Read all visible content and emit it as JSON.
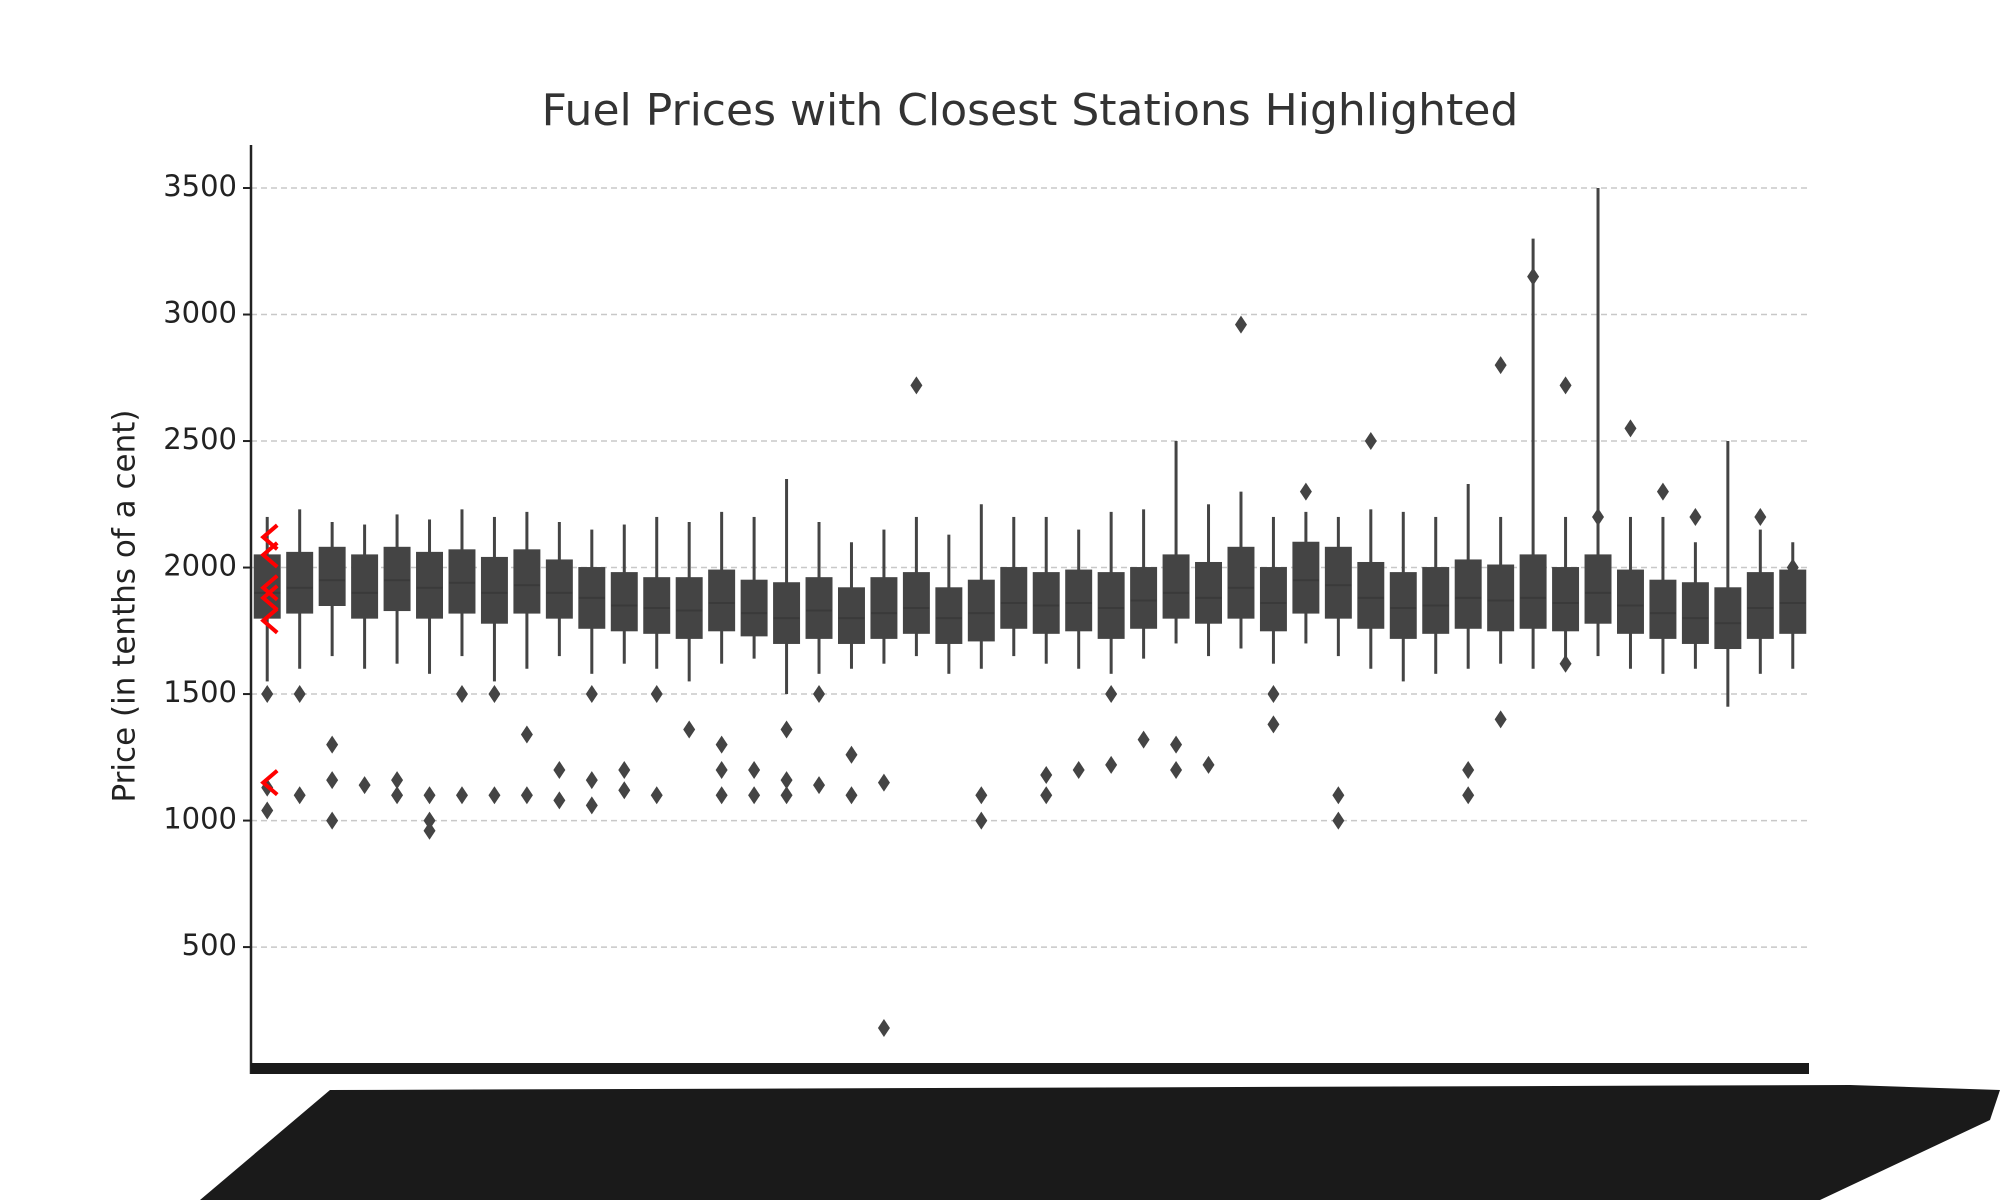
{
  "chart_data": {
    "type": "box",
    "title": "Fuel Prices with Closest Stations Highlighted",
    "y_label": "Price (in tenths of a cent)",
    "ylim": [
      30,
      3670
    ],
    "yticks": [
      500,
      1000,
      1500,
      2000,
      2500,
      3000,
      3500
    ],
    "grid": true,
    "color": "#444444",
    "highlight_color": "#ff0000",
    "highlight": [
      2120,
      2050,
      1920,
      1880,
      1790,
      1150
    ],
    "boxes": [
      {
        "whislo": 1550,
        "q1": 1800,
        "med": 1900,
        "q3": 2050,
        "whishi": 2200,
        "fliers": [
          1500,
          1130,
          1040
        ]
      },
      {
        "whislo": 1600,
        "q1": 1820,
        "med": 1920,
        "q3": 2060,
        "whishi": 2230,
        "fliers": [
          1100,
          1500
        ]
      },
      {
        "whislo": 1650,
        "q1": 1850,
        "med": 1950,
        "q3": 2080,
        "whishi": 2180,
        "fliers": [
          1160,
          1000,
          1300
        ]
      },
      {
        "whislo": 1600,
        "q1": 1800,
        "med": 1900,
        "q3": 2050,
        "whishi": 2170,
        "fliers": [
          1140
        ]
      },
      {
        "whislo": 1620,
        "q1": 1830,
        "med": 1950,
        "q3": 2080,
        "whishi": 2210,
        "fliers": [
          1160,
          1100
        ]
      },
      {
        "whislo": 1580,
        "q1": 1800,
        "med": 1920,
        "q3": 2060,
        "whishi": 2190,
        "fliers": [
          1100,
          960,
          1000
        ]
      },
      {
        "whislo": 1650,
        "q1": 1820,
        "med": 1940,
        "q3": 2070,
        "whishi": 2230,
        "fliers": [
          1500,
          1100
        ]
      },
      {
        "whislo": 1550,
        "q1": 1780,
        "med": 1900,
        "q3": 2040,
        "whishi": 2200,
        "fliers": [
          1100,
          1500
        ]
      },
      {
        "whislo": 1600,
        "q1": 1820,
        "med": 1930,
        "q3": 2070,
        "whishi": 2220,
        "fliers": [
          1340,
          1100
        ]
      },
      {
        "whislo": 1650,
        "q1": 1800,
        "med": 1900,
        "q3": 2030,
        "whishi": 2180,
        "fliers": [
          1200,
          1080
        ]
      },
      {
        "whislo": 1580,
        "q1": 1760,
        "med": 1880,
        "q3": 2000,
        "whishi": 2150,
        "fliers": [
          1160,
          1060,
          1500
        ]
      },
      {
        "whislo": 1620,
        "q1": 1750,
        "med": 1850,
        "q3": 1980,
        "whishi": 2170,
        "fliers": [
          1200,
          1120
        ]
      },
      {
        "whislo": 1600,
        "q1": 1740,
        "med": 1840,
        "q3": 1960,
        "whishi": 2200,
        "fliers": [
          1500,
          1100
        ]
      },
      {
        "whislo": 1550,
        "q1": 1720,
        "med": 1830,
        "q3": 1960,
        "whishi": 2180,
        "fliers": [
          1360
        ]
      },
      {
        "whislo": 1620,
        "q1": 1750,
        "med": 1860,
        "q3": 1990,
        "whishi": 2220,
        "fliers": [
          1100,
          1200,
          1300
        ]
      },
      {
        "whislo": 1640,
        "q1": 1730,
        "med": 1820,
        "q3": 1950,
        "whishi": 2200,
        "fliers": [
          1200,
          1100
        ]
      },
      {
        "whislo": 1500,
        "q1": 1700,
        "med": 1800,
        "q3": 1940,
        "whishi": 2350,
        "fliers": [
          1100,
          1360,
          1160
        ]
      },
      {
        "whislo": 1580,
        "q1": 1720,
        "med": 1830,
        "q3": 1960,
        "whishi": 2180,
        "fliers": [
          1140,
          1500
        ]
      },
      {
        "whislo": 1600,
        "q1": 1700,
        "med": 1800,
        "q3": 1920,
        "whishi": 2100,
        "fliers": [
          1260,
          1100
        ]
      },
      {
        "whislo": 1620,
        "q1": 1720,
        "med": 1820,
        "q3": 1960,
        "whishi": 2150,
        "fliers": [
          180,
          1150
        ]
      },
      {
        "whislo": 1650,
        "q1": 1740,
        "med": 1840,
        "q3": 1980,
        "whishi": 2200,
        "fliers": [
          2720
        ]
      },
      {
        "whislo": 1580,
        "q1": 1700,
        "med": 1800,
        "q3": 1920,
        "whishi": 2130
      },
      {
        "whislo": 1600,
        "q1": 1710,
        "med": 1820,
        "q3": 1950,
        "whishi": 2250,
        "fliers": [
          1100,
          1000
        ]
      },
      {
        "whislo": 1650,
        "q1": 1760,
        "med": 1860,
        "q3": 2000,
        "whishi": 2200
      },
      {
        "whislo": 1620,
        "q1": 1740,
        "med": 1850,
        "q3": 1980,
        "whishi": 2200,
        "fliers": [
          1180,
          1100
        ]
      },
      {
        "whislo": 1600,
        "q1": 1750,
        "med": 1860,
        "q3": 1990,
        "whishi": 2150,
        "fliers": [
          1200
        ]
      },
      {
        "whislo": 1580,
        "q1": 1720,
        "med": 1840,
        "q3": 1980,
        "whishi": 2220,
        "fliers": [
          1220,
          1500
        ]
      },
      {
        "whislo": 1640,
        "q1": 1760,
        "med": 1870,
        "q3": 2000,
        "whishi": 2230,
        "fliers": [
          1320
        ]
      },
      {
        "whislo": 1700,
        "q1": 1800,
        "med": 1900,
        "q3": 2050,
        "whishi": 2500,
        "fliers": [
          1200,
          1300
        ]
      },
      {
        "whislo": 1650,
        "q1": 1780,
        "med": 1880,
        "q3": 2020,
        "whishi": 2250,
        "fliers": [
          1220
        ]
      },
      {
        "whislo": 1680,
        "q1": 1800,
        "med": 1920,
        "q3": 2080,
        "whishi": 2300,
        "fliers": [
          2960
        ]
      },
      {
        "whislo": 1620,
        "q1": 1750,
        "med": 1860,
        "q3": 2000,
        "whishi": 2200,
        "fliers": [
          1380,
          1500
        ]
      },
      {
        "whislo": 1700,
        "q1": 1820,
        "med": 1950,
        "q3": 2100,
        "whishi": 2220,
        "fliers": [
          2300
        ]
      },
      {
        "whislo": 1650,
        "q1": 1800,
        "med": 1930,
        "q3": 2080,
        "whishi": 2200,
        "fliers": [
          1100,
          1000
        ]
      },
      {
        "whislo": 1600,
        "q1": 1760,
        "med": 1880,
        "q3": 2020,
        "whishi": 2230,
        "fliers": [
          2500
        ]
      },
      {
        "whislo": 1550,
        "q1": 1720,
        "med": 1840,
        "q3": 1980,
        "whishi": 2220
      },
      {
        "whislo": 1580,
        "q1": 1740,
        "med": 1850,
        "q3": 2000,
        "whishi": 2200
      },
      {
        "whislo": 1600,
        "q1": 1760,
        "med": 1880,
        "q3": 2030,
        "whishi": 2330,
        "fliers": [
          1100,
          1200
        ]
      },
      {
        "whislo": 1620,
        "q1": 1750,
        "med": 1870,
        "q3": 2010,
        "whishi": 2200,
        "fliers": [
          2800,
          1400
        ]
      },
      {
        "whislo": 1600,
        "q1": 1760,
        "med": 1880,
        "q3": 2050,
        "whishi": 3300,
        "fliers": [
          3150
        ]
      },
      {
        "whislo": 1620,
        "q1": 1750,
        "med": 1860,
        "q3": 2000,
        "whishi": 2200,
        "fliers": [
          1620,
          2720
        ]
      },
      {
        "whislo": 1650,
        "q1": 1780,
        "med": 1900,
        "q3": 2050,
        "whishi": 3500,
        "fliers": [
          2200
        ]
      },
      {
        "whislo": 1600,
        "q1": 1740,
        "med": 1850,
        "q3": 1990,
        "whishi": 2200,
        "fliers": [
          2550
        ]
      },
      {
        "whislo": 1580,
        "q1": 1720,
        "med": 1820,
        "q3": 1950,
        "whishi": 2200,
        "fliers": [
          2300
        ]
      },
      {
        "whislo": 1600,
        "q1": 1700,
        "med": 1800,
        "q3": 1940,
        "whishi": 2100,
        "fliers": [
          2200
        ]
      },
      {
        "whislo": 1450,
        "q1": 1680,
        "med": 1780,
        "q3": 1920,
        "whishi": 2500
      },
      {
        "whislo": 1580,
        "q1": 1720,
        "med": 1840,
        "q3": 1980,
        "whishi": 2150,
        "fliers": [
          2200
        ]
      },
      {
        "whislo": 1600,
        "q1": 1740,
        "med": 1860,
        "q3": 1990,
        "whishi": 2100,
        "fliers": [
          2000
        ]
      }
    ]
  }
}
